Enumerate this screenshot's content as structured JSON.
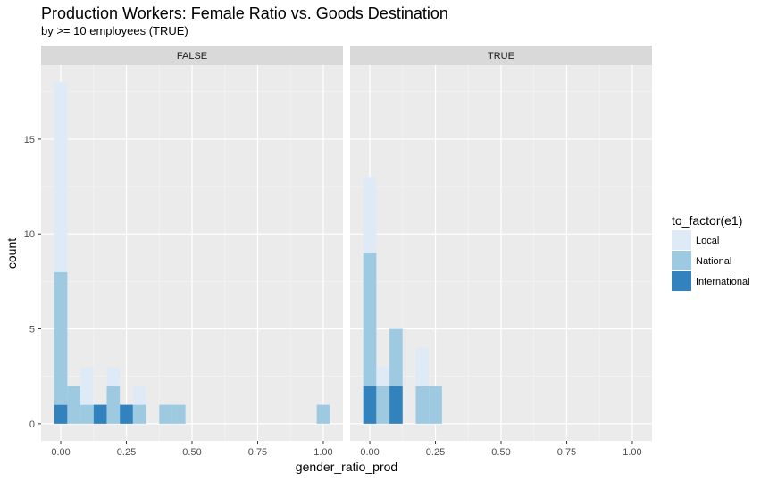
{
  "chart_data": {
    "type": "bar",
    "stacked": true,
    "title": "Production Workers: Female Ratio vs. Goods Destination",
    "subtitle": "by >= 10 employees (TRUE)",
    "xlabel": "gender_ratio_prod",
    "ylabel": "count",
    "xlim": [
      -0.075,
      1.075
    ],
    "ylim": [
      -0.9,
      18.9
    ],
    "x_ticks": [
      0.0,
      0.25,
      0.5,
      0.75,
      1.0
    ],
    "x_tick_labels": [
      "0.00",
      "0.25",
      "0.50",
      "0.75",
      "1.00"
    ],
    "y_ticks": [
      0,
      5,
      10,
      15
    ],
    "y_tick_labels": [
      "0",
      "5",
      "10",
      "15"
    ],
    "bin_width": 0.05,
    "bin_centers": [
      0.0,
      0.05,
      0.1,
      0.15,
      0.2,
      0.25,
      0.3,
      0.35,
      0.4,
      0.45,
      0.5,
      0.55,
      0.6,
      0.65,
      0.7,
      0.75,
      0.8,
      0.85,
      0.9,
      0.95,
      1.0
    ],
    "legend": {
      "title": "to_factor(e1)",
      "position": "right",
      "entries": [
        "Local",
        "National",
        "International"
      ]
    },
    "colors": {
      "Local": "#deebf7",
      "National": "#9ecae1",
      "International": "#3182bd"
    },
    "facets": [
      {
        "label": "FALSE",
        "series": [
          {
            "name": "International",
            "values": [
              1,
              0,
              0,
              1,
              0,
              1,
              0,
              0,
              0,
              0,
              0,
              0,
              0,
              0,
              0,
              0,
              0,
              0,
              0,
              0,
              0
            ]
          },
          {
            "name": "National",
            "values": [
              7,
              2,
              1,
              0,
              2,
              0,
              1,
              0,
              1,
              1,
              0,
              0,
              0,
              0,
              0,
              0,
              0,
              0,
              0,
              0,
              1
            ]
          },
          {
            "name": "Local",
            "values": [
              10,
              0,
              2,
              0,
              1,
              0,
              1,
              0,
              0,
              0,
              0,
              0,
              0,
              0,
              0,
              0,
              0,
              0,
              0,
              0,
              0
            ]
          }
        ]
      },
      {
        "label": "TRUE",
        "series": [
          {
            "name": "International",
            "values": [
              2,
              0,
              2,
              0,
              0,
              0,
              0,
              0,
              0,
              0,
              0,
              0,
              0,
              0,
              0,
              0,
              0,
              0,
              0,
              0,
              0
            ]
          },
          {
            "name": "National",
            "values": [
              7,
              2,
              3,
              0,
              2,
              2,
              0,
              0,
              0,
              0,
              0,
              0,
              0,
              0,
              0,
              0,
              0,
              0,
              0,
              0,
              0
            ]
          },
          {
            "name": "Local",
            "values": [
              4,
              1,
              0,
              0,
              2,
              0,
              0,
              0,
              0,
              0,
              0,
              0,
              0,
              0,
              0,
              0,
              0,
              0,
              0,
              0,
              0
            ]
          }
        ]
      }
    ],
    "grid": true
  }
}
